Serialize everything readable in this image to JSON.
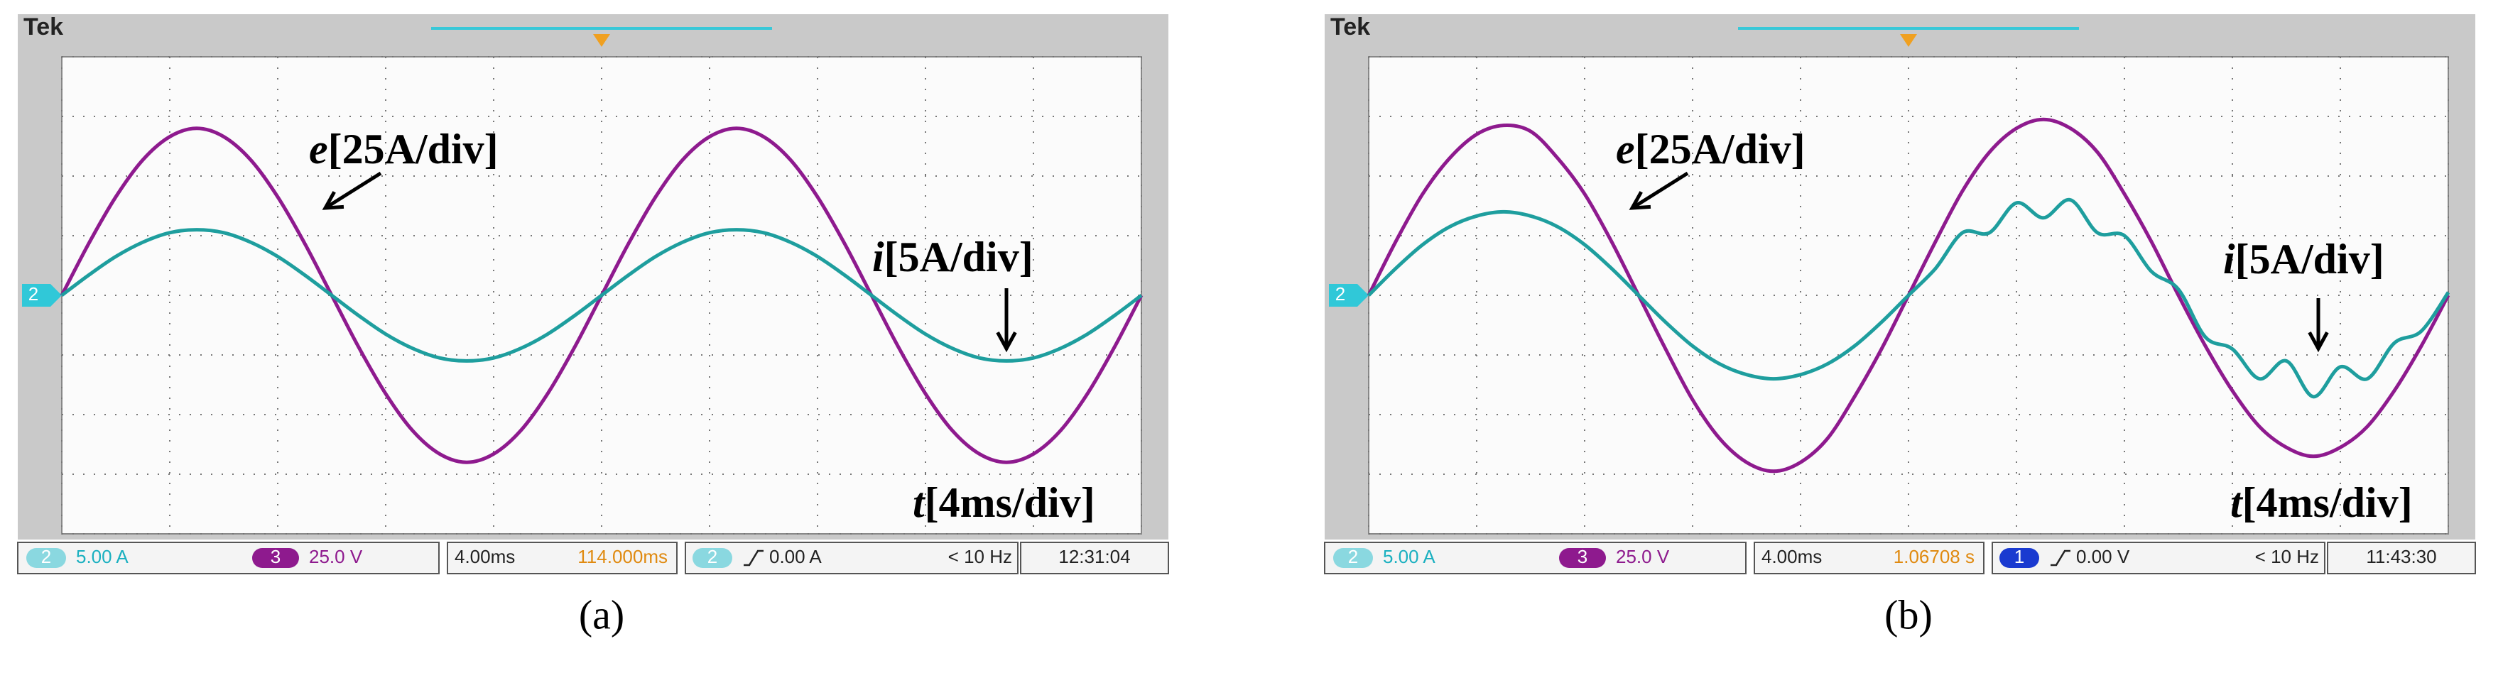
{
  "chart_data": [
    {
      "type": "line",
      "brand": "Tek",
      "caption": "(a)",
      "channel_marker": "2",
      "xlim": [
        0,
        40
      ],
      "ylim": [
        -4,
        4
      ],
      "xticks": [
        0,
        4,
        8,
        12,
        16,
        20,
        24,
        28,
        32,
        36,
        40
      ],
      "yticks": [
        -4,
        -3,
        -2,
        -1,
        0,
        1,
        2,
        3,
        4
      ],
      "grid": true,
      "x": [
        0,
        1,
        2,
        3,
        4,
        5,
        6,
        7,
        8,
        9,
        10,
        11,
        12,
        13,
        14,
        15,
        16,
        17,
        18,
        19,
        20,
        21,
        22,
        23,
        24,
        25,
        26,
        27,
        28,
        29,
        30,
        31,
        32,
        33,
        34,
        35,
        36,
        37,
        38,
        39,
        40
      ],
      "series": [
        {
          "color": "#8e1a8e",
          "values": [
            0,
            0.87,
            1.65,
            2.27,
            2.66,
            2.8,
            2.66,
            2.27,
            1.65,
            0.87,
            0,
            -0.87,
            -1.65,
            -2.27,
            -2.66,
            -2.8,
            -2.66,
            -2.27,
            -1.65,
            -0.87,
            0,
            0.87,
            1.65,
            2.27,
            2.66,
            2.8,
            2.66,
            2.27,
            1.65,
            0.87,
            0,
            -0.87,
            -1.65,
            -2.27,
            -2.66,
            -2.8,
            -2.66,
            -2.27,
            -1.65,
            -0.87,
            0
          ]
        },
        {
          "color": "#1e9e9e",
          "values": [
            0,
            0.34,
            0.65,
            0.89,
            1.05,
            1.1,
            1.05,
            0.89,
            0.65,
            0.34,
            0,
            -0.34,
            -0.65,
            -0.89,
            -1.05,
            -1.1,
            -1.05,
            -0.89,
            -0.65,
            -0.34,
            0,
            0.34,
            0.65,
            0.89,
            1.05,
            1.1,
            1.05,
            0.89,
            0.65,
            0.34,
            0,
            -0.34,
            -0.65,
            -0.89,
            -1.05,
            -1.1,
            -1.05,
            -0.89,
            -0.65,
            -0.34,
            0
          ]
        }
      ],
      "annotations": [
        {
          "var": "e",
          "unit": "[25A/div]"
        },
        {
          "var": "i",
          "unit": "[5A/div]"
        },
        {
          "var": "t",
          "unit": "[4ms/div]"
        }
      ],
      "status": {
        "ch2": "2",
        "ch2_scale": "5.00 A",
        "ch3": "3",
        "ch3_scale": "25.0 V",
        "timebase": "4.00ms",
        "position": "114.000ms",
        "trigger_source": "2",
        "trigger_level": "0.00 A",
        "frequency": "< 10 Hz",
        "clock": "12:31:04"
      }
    },
    {
      "type": "line",
      "brand": "Tek",
      "caption": "(b)",
      "channel_marker": "2",
      "xlim": [
        0,
        40
      ],
      "ylim": [
        -4,
        4
      ],
      "xticks": [
        0,
        4,
        8,
        12,
        16,
        20,
        24,
        28,
        32,
        36,
        40
      ],
      "yticks": [
        -4,
        -3,
        -2,
        -1,
        0,
        1,
        2,
        3,
        4
      ],
      "grid": true,
      "x": [
        0,
        1,
        2,
        3,
        4,
        5,
        6,
        7,
        8,
        9,
        10,
        11,
        12,
        13,
        14,
        15,
        16,
        17,
        18,
        19,
        20,
        21,
        22,
        23,
        24,
        25,
        26,
        27,
        28,
        29,
        30,
        31,
        32,
        33,
        34,
        35,
        36,
        37,
        38,
        39,
        40
      ],
      "series": [
        {
          "color": "#8e1a8e",
          "values": [
            0,
            0.9,
            1.7,
            2.3,
            2.7,
            2.85,
            2.75,
            2.3,
            1.7,
            0.9,
            0,
            -0.9,
            -1.75,
            -2.4,
            -2.8,
            -2.95,
            -2.8,
            -2.4,
            -1.7,
            -0.9,
            0,
            0.9,
            1.75,
            2.4,
            2.8,
            2.95,
            2.8,
            2.4,
            1.7,
            0.9,
            0,
            -0.85,
            -1.6,
            -2.2,
            -2.55,
            -2.7,
            -2.55,
            -2.2,
            -1.6,
            -0.85,
            0
          ]
        },
        {
          "color": "#1e9e9e",
          "values": [
            0,
            0.45,
            0.85,
            1.15,
            1.33,
            1.4,
            1.33,
            1.15,
            0.85,
            0.45,
            0,
            -0.45,
            -0.85,
            -1.15,
            -1.33,
            -1.4,
            -1.33,
            -1.15,
            -0.85,
            -0.45,
            0,
            0.45,
            1.05,
            1.05,
            1.55,
            1.3,
            1.6,
            1.05,
            1.0,
            0.4,
            0.1,
            -0.7,
            -0.9,
            -1.4,
            -1.1,
            -1.7,
            -1.2,
            -1.4,
            -0.8,
            -0.6,
            0.05
          ]
        }
      ],
      "annotations": [
        {
          "var": "e",
          "unit": "[25A/div]"
        },
        {
          "var": "i",
          "unit": "[5A/div]"
        },
        {
          "var": "t",
          "unit": "[4ms/div]"
        }
      ],
      "status": {
        "ch2": "2",
        "ch2_scale": "5.00 A",
        "ch3": "3",
        "ch3_scale": "25.0 V",
        "timebase": "4.00ms",
        "position": "1.06708 s",
        "trigger_source": "1",
        "trigger_level": "0.00 V",
        "frequency": "< 10 Hz",
        "clock": "11:43:30"
      }
    }
  ]
}
